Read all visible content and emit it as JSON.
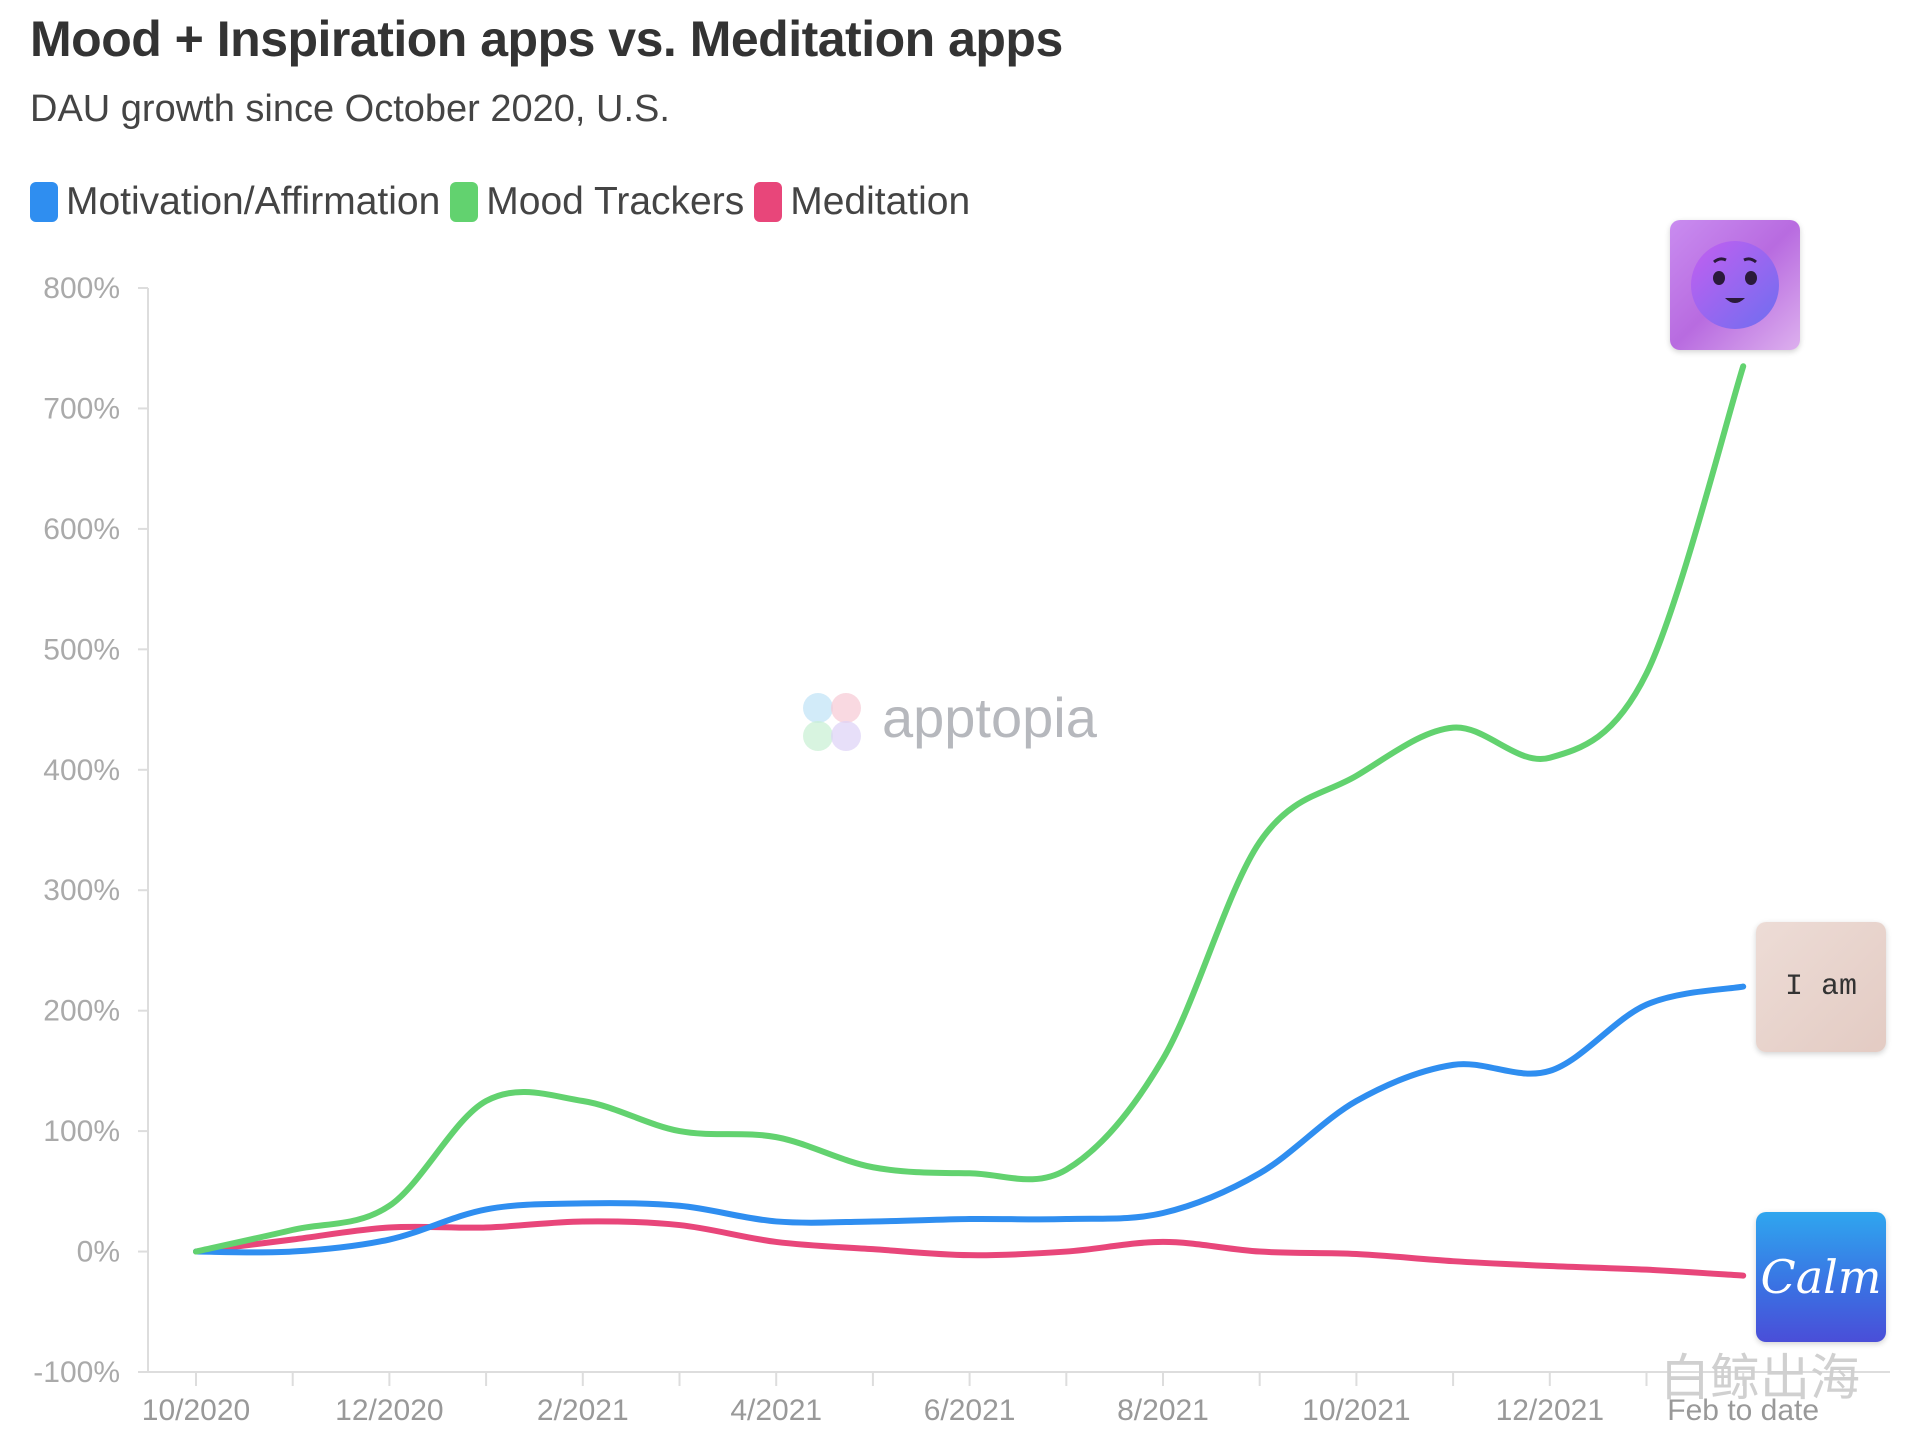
{
  "title": "Mood + Inspiration apps vs. Meditation apps",
  "subtitle": "DAU growth since October 2020, U.S.",
  "watermark": "apptopia",
  "brand_watermark": "白鲸出海",
  "icons": {
    "mood_app": "smiling-face-icon",
    "iam_app": {
      "name": "iam-app-icon",
      "text": "I am"
    },
    "calm_app": {
      "name": "calm-app-icon",
      "text": "Calm"
    }
  },
  "colors": {
    "motivation": "#2f8ef0",
    "mood": "#62d26f",
    "meditation": "#e8467a",
    "axis": "#dddddd"
  },
  "chart_data": {
    "type": "line",
    "title": "Mood + Inspiration apps vs. Meditation apps",
    "subtitle": "DAU growth since October 2020, U.S.",
    "xlabel": "",
    "ylabel": "",
    "ylim": [
      -100,
      800
    ],
    "yticks": [
      "-100%",
      "0%",
      "100%",
      "200%",
      "300%",
      "400%",
      "500%",
      "600%",
      "700%",
      "800%"
    ],
    "xticks": [
      "10/2020",
      "12/2020",
      "2/2021",
      "4/2021",
      "6/2021",
      "8/2021",
      "10/2021",
      "12/2021",
      "Feb to date"
    ],
    "x": [
      "10/2020",
      "11/2020",
      "12/2020",
      "1/2021",
      "2/2021",
      "3/2021",
      "4/2021",
      "5/2021",
      "6/2021",
      "7/2021",
      "8/2021",
      "9/2021",
      "10/2021",
      "11/2021",
      "12/2021",
      "1/2022",
      "Feb to date"
    ],
    "legend_position": "top-left",
    "grid": false,
    "series": [
      {
        "name": "Motivation/Affirmation",
        "color": "#2f8ef0",
        "values": [
          0,
          0,
          10,
          35,
          40,
          38,
          25,
          25,
          27,
          27,
          32,
          65,
          125,
          155,
          150,
          205,
          220
        ]
      },
      {
        "name": "Mood Trackers",
        "color": "#62d26f",
        "values": [
          0,
          18,
          38,
          125,
          125,
          100,
          95,
          70,
          65,
          68,
          160,
          340,
          395,
          435,
          410,
          480,
          735
        ]
      },
      {
        "name": "Meditation",
        "color": "#e8467a",
        "values": [
          0,
          10,
          20,
          20,
          25,
          22,
          8,
          2,
          -3,
          0,
          8,
          0,
          -2,
          -8,
          -12,
          -15,
          -20
        ]
      }
    ]
  }
}
